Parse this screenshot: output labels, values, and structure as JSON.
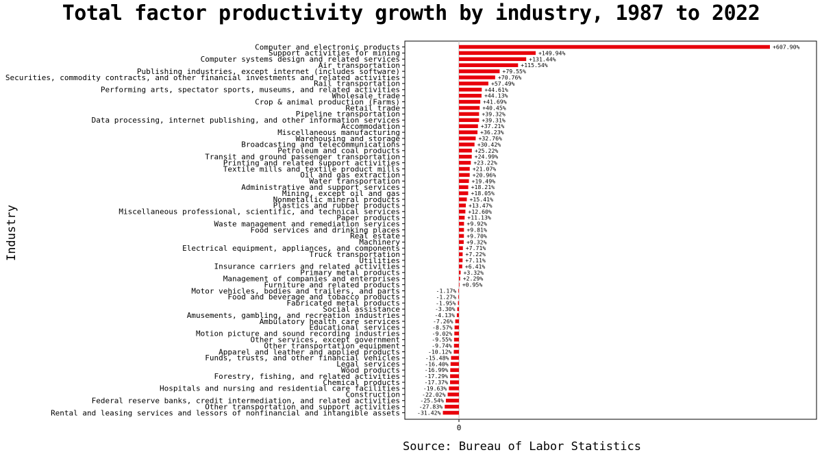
{
  "chart_data": {
    "type": "bar",
    "orientation": "horizontal",
    "title": "Total factor productivity growth by industry, 1987 to 2022",
    "ylabel": "Industry",
    "source": "Source: Bureau of Labor Statistics",
    "xticks": [
      "0"
    ],
    "xlim": [
      -36,
      765
    ],
    "bar_color": "#e8000b",
    "value_unit": "%",
    "grid": false,
    "categories": [
      "Computer and electronic products",
      "Support activities for mining",
      "Computer systems design and related services",
      "Air transportation",
      "Publishing industries, except internet (includes software)",
      "Securities, commodity contracts, and other financial investments and related activities",
      "Rail transportation",
      "Performing arts, spectator sports, museums, and related activities",
      "Wholesale trade",
      "Crop & animal production (Farms)",
      "Retail trade",
      "Pipeline transportation",
      "Data processing, internet publishing, and other information services",
      "Accommodation",
      "Miscellaneous manufacturing",
      "Warehousing and storage",
      "Broadcasting and telecommunications",
      "Petroleum and coal products",
      "Transit and ground passenger transportation",
      "Printing and related support activities",
      "Textile mills and textile product mills",
      "Oil and gas extraction",
      "Water transportation",
      "Administrative and support services",
      "Mining, except oil and gas",
      "Nonmetallic mineral products",
      "Plastics and rubber products",
      "Miscellaneous professional, scientific, and technical services",
      "Paper products",
      "Waste management and remediation services",
      "Food services and drinking places",
      "Real estate",
      "Machinery",
      "Electrical equipment, appliances, and components",
      "Truck transportation",
      "Utilities",
      "Insurance carriers and related activities",
      "Primary metal products",
      "Management of companies and enterprises",
      "Furniture and related products",
      "Motor vehicles, bodies and trailers, and parts",
      "Food and beverage and tobacco products",
      "Fabricated metal products",
      "Social assistance",
      "Amusements, gambling, and recreation industries",
      "Ambulatory health care services",
      "Educational services",
      "Motion picture and sound recording industries",
      "Other services, except government",
      "Other transportation equipment",
      "Apparel and leather and applied products",
      "Funds, trusts, and other financial vehicles",
      "Legal services",
      "Wood products",
      "Forestry, fishing, and related activities",
      "Chemical products",
      "Hospitals and nursing and residential care facilities",
      "Construction",
      "Federal reserve banks, credit intermediation, and related activities",
      "Other transportation and support activities",
      "Rental and leasing services and lessors of nonfinancial and intangible assets"
    ],
    "values": [
      607.9,
      149.94,
      131.44,
      115.54,
      79.55,
      70.76,
      57.49,
      44.61,
      44.13,
      41.69,
      40.45,
      39.32,
      39.31,
      37.21,
      36.23,
      32.76,
      30.42,
      25.22,
      24.99,
      23.22,
      21.07,
      20.96,
      19.49,
      18.21,
      18.05,
      15.41,
      13.47,
      12.6,
      11.13,
      9.92,
      9.81,
      9.7,
      9.32,
      7.71,
      7.22,
      7.11,
      6.41,
      3.32,
      2.29,
      0.95,
      -1.17,
      -1.27,
      -1.95,
      -3.3,
      -4.13,
      -7.26,
      -8.57,
      -9.02,
      -9.55,
      -9.74,
      -10.12,
      -15.48,
      -16.4,
      -16.99,
      -17.29,
      -17.37,
      -19.63,
      -22.02,
      -25.54,
      -27.83,
      -31.42
    ],
    "data_labels": [
      "+607.90%",
      "+149.94%",
      "+131.44%",
      "+115.54%",
      "+79.55%",
      "+70.76%",
      "+57.49%",
      "+44.61%",
      "+44.13%",
      "+41.69%",
      "+40.45%",
      "+39.32%",
      "+39.31%",
      "+37.21%",
      "+36.23%",
      "+32.76%",
      "+30.42%",
      "+25.22%",
      "+24.99%",
      "+23.22%",
      "+21.07%",
      "+20.96%",
      "+19.49%",
      "+18.21%",
      "+18.05%",
      "+15.41%",
      "+13.47%",
      "+12.60%",
      "+11.13%",
      "+9.92%",
      "+9.81%",
      "+9.70%",
      "+9.32%",
      "+7.71%",
      "+7.22%",
      "+7.11%",
      "+6.41%",
      "+3.32%",
      "+2.29%",
      "+0.95%",
      "-1.17%",
      "-1.27%",
      "-1.95%",
      "-3.30%",
      "-4.13%",
      "-7.26%",
      "-8.57%",
      "-9.02%",
      "-9.55%",
      "-9.74%",
      "-10.12%",
      "-15.48%",
      "-16.40%",
      "-16.99%",
      "-17.29%",
      "-17.37%",
      "-19.63%",
      "-22.02%",
      "-25.54%",
      "-27.83%",
      "-31.42%"
    ]
  }
}
